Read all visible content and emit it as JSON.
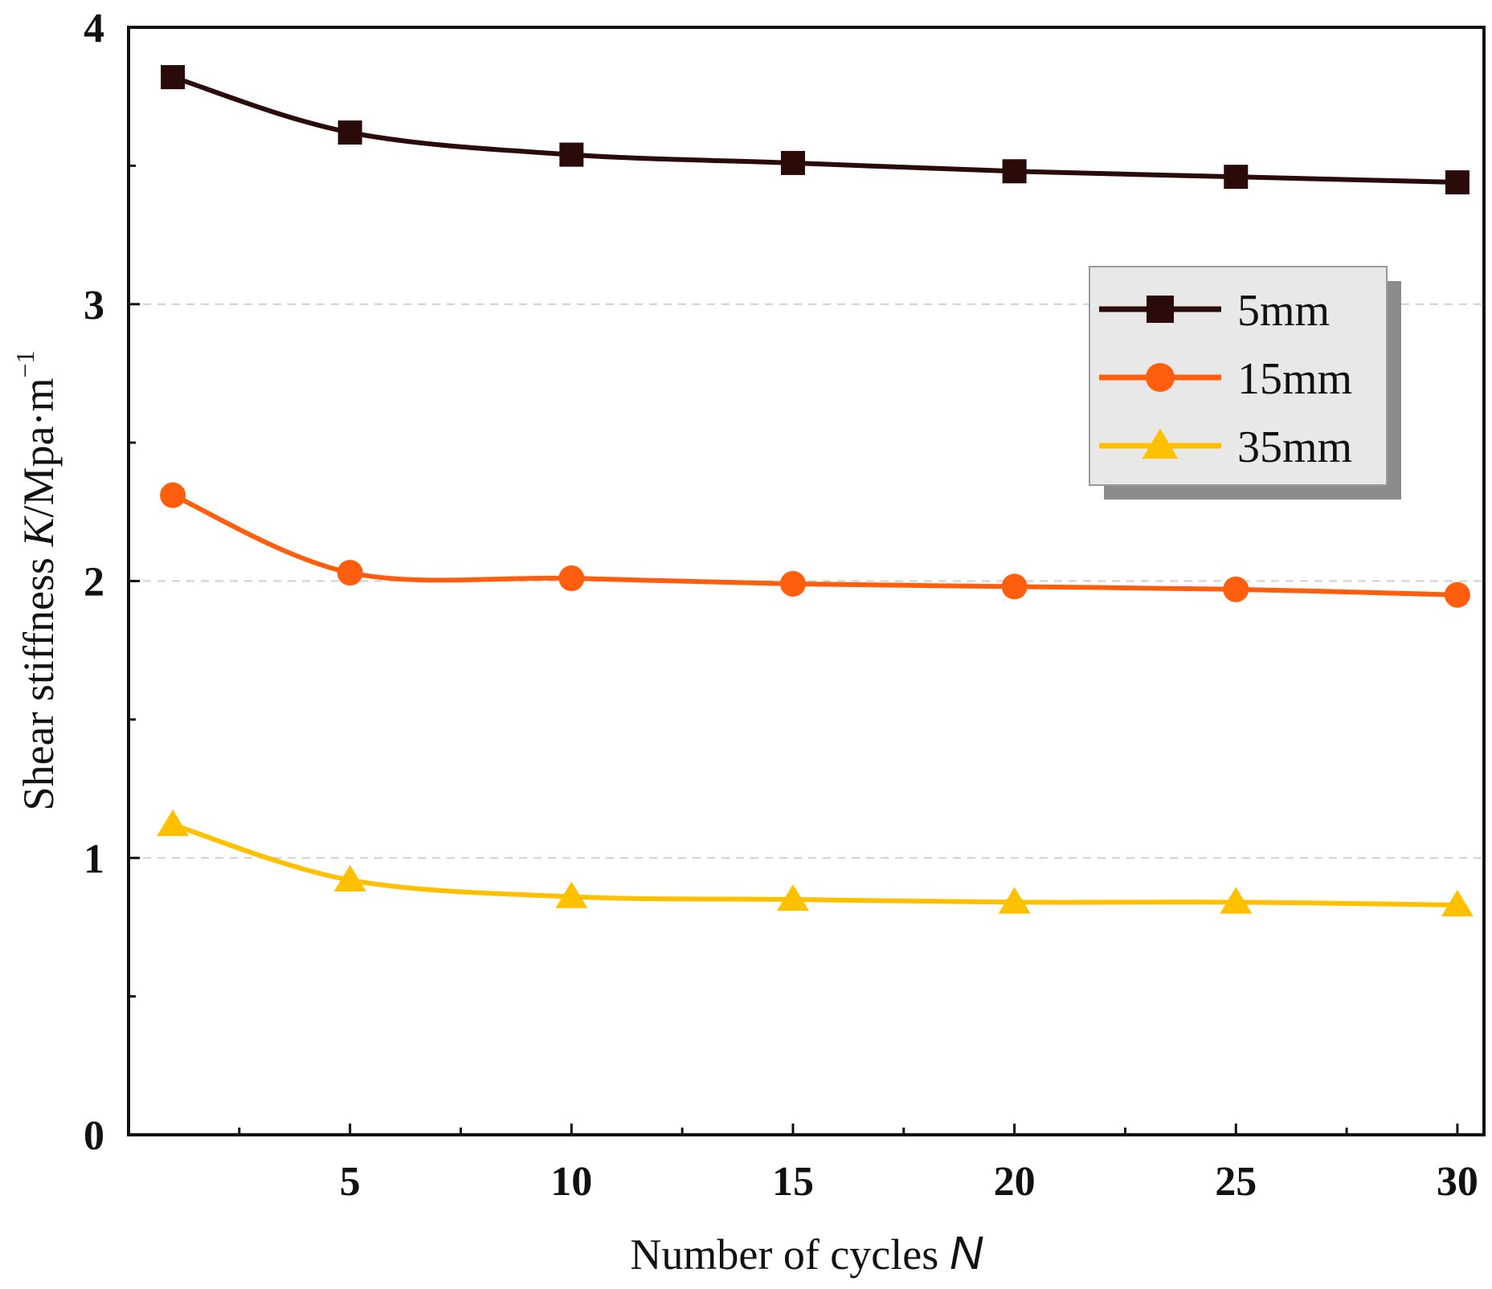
{
  "chart_data": {
    "type": "line",
    "title": "",
    "xlabel": "Number of cycles",
    "xlabel_var": "N",
    "ylabel": "Shear stiffness",
    "ylabel_var": "K",
    "ylabel_unit": "/Mpa·m",
    "ylabel_exp": "−1",
    "xlim": [
      0,
      30.6
    ],
    "ylim": [
      0,
      4
    ],
    "xticks": [
      5,
      10,
      15,
      20,
      25,
      30
    ],
    "xtick_labels": [
      "5",
      "10",
      "15",
      "20",
      "25",
      "30"
    ],
    "yticks": [
      0,
      1,
      2,
      3,
      4
    ],
    "ytick_labels": [
      "0",
      "1",
      "2",
      "3",
      "4"
    ],
    "grid": "horizontal dashed at 1, 2, 3",
    "legend_position": "upper-right",
    "x": [
      1,
      5,
      10,
      15,
      20,
      25,
      30
    ],
    "series": [
      {
        "name": "5mm",
        "marker": "square",
        "color": "#2b0a0a",
        "values": [
          3.82,
          3.62,
          3.54,
          3.51,
          3.48,
          3.46,
          3.44
        ]
      },
      {
        "name": "15mm",
        "marker": "circle",
        "color": "#ff5e0e",
        "values": [
          2.31,
          2.03,
          2.01,
          1.99,
          1.98,
          1.97,
          1.95
        ]
      },
      {
        "name": "35mm",
        "marker": "triangle",
        "color": "#ffc000",
        "values": [
          1.12,
          0.92,
          0.86,
          0.85,
          0.84,
          0.84,
          0.83
        ]
      }
    ]
  }
}
